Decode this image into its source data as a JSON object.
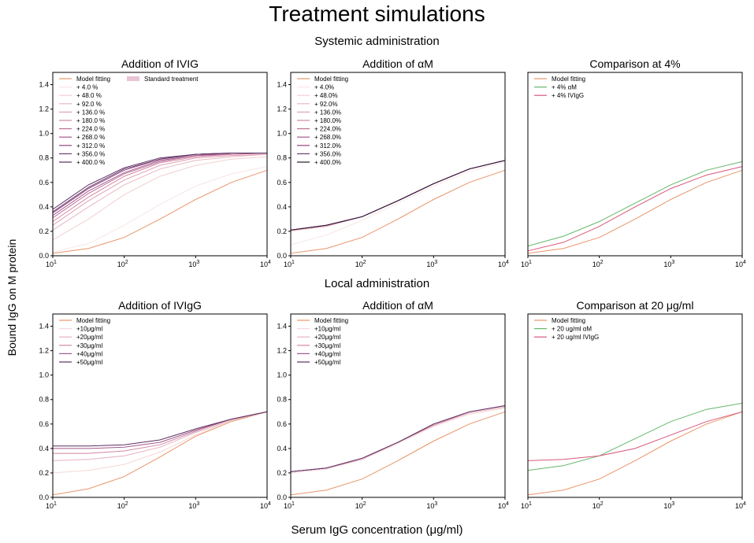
{
  "figure": {
    "title": "Treatment simulations",
    "section_top": "Systemic administration",
    "section_bottom": "Local administration",
    "ylabel": "Bound IgG on M protein",
    "xlabel": "Serum IgG concentration (μg/ml)"
  },
  "chart_data": [
    {
      "type": "line",
      "title": "Addition of IVIG",
      "x_scale": "log",
      "xlim": [
        10,
        10000
      ],
      "ylim": [
        0,
        1.5
      ],
      "xticks": [
        [
          "10",
          "1"
        ],
        [
          "10",
          "2"
        ],
        [
          "10",
          "3"
        ],
        [
          "10",
          "4"
        ]
      ],
      "yticks": [
        "0.0",
        "0.2",
        "0.4",
        "0.6",
        "0.8",
        "1.0",
        "1.2",
        "1.4"
      ],
      "x": [
        10,
        31.6,
        100,
        316,
        1000,
        3162,
        10000
      ],
      "legend": "upper-left",
      "extra_legend": "Standard treatment",
      "extra_legend_color": "#e8c4d4",
      "series": [
        {
          "name": "Model fitting",
          "color": "#e8956a",
          "values": [
            0.02,
            0.06,
            0.15,
            0.3,
            0.46,
            0.6,
            0.7
          ]
        },
        {
          "name": "+ 4.0 %",
          "color": "#f8e6e4",
          "values": [
            0.03,
            0.1,
            0.25,
            0.42,
            0.57,
            0.67,
            0.73
          ]
        },
        {
          "name": "+ 48.0 %",
          "color": "#f2d0d2",
          "values": [
            0.13,
            0.3,
            0.5,
            0.65,
            0.74,
            0.79,
            0.81
          ]
        },
        {
          "name": "+ 92.0 %",
          "color": "#e9b7c0",
          "values": [
            0.21,
            0.4,
            0.58,
            0.71,
            0.78,
            0.81,
            0.83
          ]
        },
        {
          "name": "+ 136.0 %",
          "color": "#dea0b2",
          "values": [
            0.25,
            0.45,
            0.62,
            0.74,
            0.8,
            0.82,
            0.83
          ]
        },
        {
          "name": "+ 180.0 %",
          "color": "#cf88a5",
          "values": [
            0.28,
            0.48,
            0.65,
            0.76,
            0.81,
            0.83,
            0.84
          ]
        },
        {
          "name": "+ 224.0 %",
          "color": "#bd7098",
          "values": [
            0.31,
            0.51,
            0.67,
            0.77,
            0.82,
            0.83,
            0.84
          ]
        },
        {
          "name": "+ 268.0 %",
          "color": "#a75b8d",
          "values": [
            0.33,
            0.53,
            0.68,
            0.78,
            0.82,
            0.84,
            0.84
          ]
        },
        {
          "name": "+ 312.0 %",
          "color": "#8e4981",
          "values": [
            0.35,
            0.55,
            0.7,
            0.79,
            0.83,
            0.84,
            0.84
          ]
        },
        {
          "name": "+ 356.0 %",
          "color": "#733a72",
          "values": [
            0.36,
            0.56,
            0.71,
            0.79,
            0.83,
            0.84,
            0.84
          ]
        },
        {
          "name": "+ 400.0 %",
          "color": "#552d5e",
          "values": [
            0.38,
            0.58,
            0.72,
            0.8,
            0.83,
            0.84,
            0.84
          ]
        }
      ]
    },
    {
      "type": "line",
      "title": "Addition of αM",
      "x_scale": "log",
      "xlim": [
        10,
        10000
      ],
      "ylim": [
        0,
        1.5
      ],
      "xticks": [
        [
          "10",
          "1"
        ],
        [
          "10",
          "2"
        ],
        [
          "10",
          "3"
        ],
        [
          "10",
          "4"
        ]
      ],
      "yticks": [
        "0.0",
        "0.2",
        "0.4",
        "0.6",
        "0.8",
        "1.0",
        "1.2",
        "1.4"
      ],
      "x": [
        10,
        31.6,
        100,
        316,
        1000,
        3162,
        10000
      ],
      "legend": "upper-left",
      "series": [
        {
          "name": "Model fitting",
          "color": "#e8956a",
          "values": [
            0.02,
            0.06,
            0.15,
            0.3,
            0.46,
            0.6,
            0.7
          ]
        },
        {
          "name": "+ 4.0%",
          "color": "#f8e6e4",
          "values": [
            0.09,
            0.17,
            0.29,
            0.43,
            0.57,
            0.69,
            0.77
          ]
        },
        {
          "name": "+ 48.0%",
          "color": "#f2d0d2",
          "values": [
            0.2,
            0.24,
            0.32,
            0.45,
            0.59,
            0.71,
            0.78
          ]
        },
        {
          "name": "+ 92.0%",
          "color": "#e9b7c0",
          "values": [
            0.21,
            0.24,
            0.32,
            0.45,
            0.59,
            0.71,
            0.78
          ]
        },
        {
          "name": "+ 136.0%",
          "color": "#dea0b2",
          "values": [
            0.21,
            0.25,
            0.32,
            0.45,
            0.59,
            0.71,
            0.78
          ]
        },
        {
          "name": "+ 180.0%",
          "color": "#cf88a5",
          "values": [
            0.21,
            0.25,
            0.32,
            0.45,
            0.59,
            0.71,
            0.78
          ]
        },
        {
          "name": "+ 224.0%",
          "color": "#bd7098",
          "values": [
            0.21,
            0.25,
            0.32,
            0.45,
            0.59,
            0.71,
            0.78
          ]
        },
        {
          "name": "+ 268.0%",
          "color": "#a75b8d",
          "values": [
            0.21,
            0.25,
            0.32,
            0.45,
            0.59,
            0.71,
            0.78
          ]
        },
        {
          "name": "+ 312.0%",
          "color": "#8e4981",
          "values": [
            0.21,
            0.25,
            0.32,
            0.45,
            0.59,
            0.71,
            0.78
          ]
        },
        {
          "name": "+ 356.0%",
          "color": "#733a72",
          "values": [
            0.21,
            0.25,
            0.32,
            0.45,
            0.59,
            0.71,
            0.78
          ]
        },
        {
          "name": "+ 400.0%",
          "color": "#2b1530",
          "values": [
            0.21,
            0.25,
            0.32,
            0.45,
            0.59,
            0.71,
            0.78
          ]
        }
      ]
    },
    {
      "type": "line",
      "title": "Comparison at 4%",
      "x_scale": "log",
      "xlim": [
        10,
        10000
      ],
      "ylim": [
        0,
        1.5
      ],
      "xticks": [
        [
          "10",
          "1"
        ],
        [
          "10",
          "2"
        ],
        [
          "10",
          "3"
        ],
        [
          "10",
          "4"
        ]
      ],
      "yticks": [],
      "x": [
        10,
        31.6,
        100,
        316,
        1000,
        3162,
        10000
      ],
      "legend": "upper-left",
      "series": [
        {
          "name": "Model fitting",
          "color": "#e8956a",
          "values": [
            0.02,
            0.06,
            0.15,
            0.3,
            0.46,
            0.6,
            0.7
          ]
        },
        {
          "name": "+ 4% αM",
          "color": "#66b86a",
          "values": [
            0.08,
            0.16,
            0.28,
            0.43,
            0.58,
            0.7,
            0.77
          ]
        },
        {
          "name": "+ 4% IVIgG",
          "color": "#d9577a",
          "values": [
            0.04,
            0.11,
            0.24,
            0.4,
            0.55,
            0.66,
            0.73
          ]
        }
      ]
    },
    {
      "type": "line",
      "title": "Addition of IVIgG",
      "x_scale": "log",
      "xlim": [
        10,
        10000
      ],
      "ylim": [
        0,
        1.5
      ],
      "xticks": [
        [
          "10",
          "1"
        ],
        [
          "10",
          "2"
        ],
        [
          "10",
          "3"
        ],
        [
          "10",
          "4"
        ]
      ],
      "yticks": [
        "0.0",
        "0.2",
        "0.4",
        "0.6",
        "0.8",
        "1.0",
        "1.2",
        "1.4"
      ],
      "x": [
        10,
        31.6,
        100,
        316,
        1000,
        3162,
        10000
      ],
      "legend": "upper-left",
      "series": [
        {
          "name": "Model fitting",
          "color": "#e8956a",
          "values": [
            0.02,
            0.07,
            0.17,
            0.33,
            0.5,
            0.62,
            0.7
          ]
        },
        {
          "name": "+10μg/ml",
          "color": "#f5d8d8",
          "values": [
            0.2,
            0.22,
            0.27,
            0.37,
            0.51,
            0.63,
            0.7
          ]
        },
        {
          "name": "+20μg/ml",
          "color": "#e7b2bf",
          "values": [
            0.3,
            0.31,
            0.34,
            0.41,
            0.53,
            0.63,
            0.7
          ]
        },
        {
          "name": "+30μg/ml",
          "color": "#cf88a5",
          "values": [
            0.36,
            0.36,
            0.38,
            0.43,
            0.54,
            0.64,
            0.7
          ]
        },
        {
          "name": "+40μg/ml",
          "color": "#a15a8c",
          "values": [
            0.4,
            0.4,
            0.41,
            0.45,
            0.55,
            0.64,
            0.7
          ]
        },
        {
          "name": "+50μg/ml",
          "color": "#5c2f62",
          "values": [
            0.42,
            0.42,
            0.43,
            0.47,
            0.56,
            0.64,
            0.7
          ]
        }
      ]
    },
    {
      "type": "line",
      "title": "Addition of αM",
      "x_scale": "log",
      "xlim": [
        10,
        10000
      ],
      "ylim": [
        0,
        1.5
      ],
      "xticks": [
        [
          "10",
          "1"
        ],
        [
          "10",
          "2"
        ],
        [
          "10",
          "3"
        ],
        [
          "10",
          "4"
        ]
      ],
      "yticks": [
        "0.0",
        "0.2",
        "0.4",
        "0.6",
        "0.8",
        "1.0",
        "1.2",
        "1.4"
      ],
      "x": [
        10,
        31.6,
        100,
        316,
        1000,
        3162,
        10000
      ],
      "legend": "upper-left",
      "series": [
        {
          "name": "Model fitting",
          "color": "#e8956a",
          "values": [
            0.02,
            0.06,
            0.15,
            0.3,
            0.46,
            0.6,
            0.7
          ]
        },
        {
          "name": "+10μg/ml",
          "color": "#f5d8d8",
          "values": [
            0.2,
            0.23,
            0.31,
            0.44,
            0.58,
            0.68,
            0.73
          ]
        },
        {
          "name": "+20μg/ml",
          "color": "#e7b2bf",
          "values": [
            0.21,
            0.24,
            0.31,
            0.45,
            0.59,
            0.69,
            0.74
          ]
        },
        {
          "name": "+30μg/ml",
          "color": "#cf88a5",
          "values": [
            0.21,
            0.24,
            0.32,
            0.45,
            0.59,
            0.7,
            0.75
          ]
        },
        {
          "name": "+40μg/ml",
          "color": "#a15a8c",
          "values": [
            0.21,
            0.24,
            0.32,
            0.45,
            0.6,
            0.7,
            0.75
          ]
        },
        {
          "name": "+50μg/ml",
          "color": "#5c2f62",
          "values": [
            0.21,
            0.24,
            0.32,
            0.45,
            0.6,
            0.7,
            0.75
          ]
        }
      ]
    },
    {
      "type": "line",
      "title": "Comparison at 20 μg/ml",
      "x_scale": "log",
      "xlim": [
        10,
        10000
      ],
      "ylim": [
        0,
        1.5
      ],
      "xticks": [
        [
          "10",
          "1"
        ],
        [
          "10",
          "2"
        ],
        [
          "10",
          "3"
        ],
        [
          "10",
          "4"
        ]
      ],
      "yticks": [],
      "x": [
        10,
        31.6,
        100,
        316,
        1000,
        3162,
        10000
      ],
      "legend": "upper-left",
      "series": [
        {
          "name": "Model fitting",
          "color": "#e8956a",
          "values": [
            0.02,
            0.06,
            0.15,
            0.3,
            0.46,
            0.6,
            0.7
          ]
        },
        {
          "name": "+ 20 ug/ml  αM",
          "color": "#66b86a",
          "values": [
            0.22,
            0.26,
            0.34,
            0.48,
            0.62,
            0.72,
            0.77
          ]
        },
        {
          "name": "+ 20 ug/ml IVIgG",
          "color": "#d9577a",
          "values": [
            0.3,
            0.31,
            0.34,
            0.4,
            0.51,
            0.62,
            0.7
          ]
        }
      ]
    }
  ]
}
